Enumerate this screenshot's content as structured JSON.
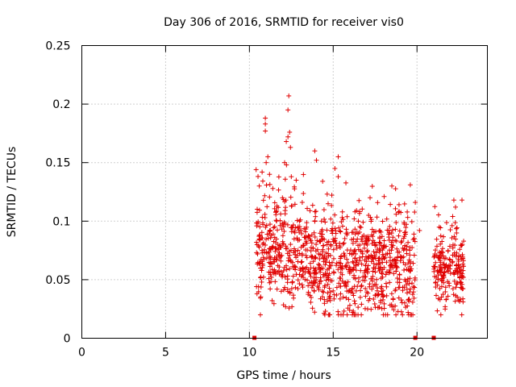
{
  "chart_data": {
    "type": "scatter",
    "title": "Day 306 of 2016, SRMTID for receiver vis0",
    "xlabel": "GPS time / hours",
    "ylabel": "SRMTID / TECUs",
    "xlim": [
      0,
      24.2
    ],
    "ylim": [
      0,
      0.25
    ],
    "x_ticks": [
      0,
      5,
      10,
      15,
      20
    ],
    "x_tick_labels": [
      "0",
      "5",
      "10",
      "15",
      "20"
    ],
    "y_ticks": [
      0,
      0.05,
      0.1,
      0.15,
      0.2,
      0.25
    ],
    "y_tick_labels": [
      "0",
      "0.05",
      "0.1",
      "0.15",
      "0.2",
      "0.25"
    ],
    "grid": true,
    "marker": "+",
    "series": [
      {
        "name": "SRMTID",
        "color": "#e00000",
        "segments": [
          {
            "x_start": 10.4,
            "x_end": 19.9,
            "y_mean": 0.062,
            "y_spread": 0.022,
            "y_min": 0.02,
            "y_max": 0.21
          },
          {
            "x_start": 21.0,
            "x_end": 22.8,
            "y_mean": 0.06,
            "y_spread": 0.016,
            "y_min": 0.02,
            "y_max": 0.118
          }
        ],
        "peaks": [
          {
            "x": 12.35,
            "y": 0.207
          },
          {
            "x": 12.3,
            "y": 0.195
          },
          {
            "x": 10.95,
            "y": 0.188
          },
          {
            "x": 10.95,
            "y": 0.183
          },
          {
            "x": 10.95,
            "y": 0.177
          },
          {
            "x": 12.4,
            "y": 0.176
          },
          {
            "x": 12.3,
            "y": 0.172
          },
          {
            "x": 12.2,
            "y": 0.168
          },
          {
            "x": 12.45,
            "y": 0.163
          },
          {
            "x": 13.9,
            "y": 0.16
          },
          {
            "x": 15.3,
            "y": 0.155
          },
          {
            "x": 11.1,
            "y": 0.155
          },
          {
            "x": 11.0,
            "y": 0.15
          },
          {
            "x": 14.0,
            "y": 0.152
          },
          {
            "x": 12.1,
            "y": 0.15
          },
          {
            "x": 15.1,
            "y": 0.145
          },
          {
            "x": 10.4,
            "y": 0.144
          },
          {
            "x": 15.3,
            "y": 0.138
          },
          {
            "x": 11.2,
            "y": 0.14
          },
          {
            "x": 12.5,
            "y": 0.138
          },
          {
            "x": 19.6,
            "y": 0.131
          },
          {
            "x": 18.5,
            "y": 0.13
          },
          {
            "x": 17.2,
            "y": 0.12
          },
          {
            "x": 22.2,
            "y": 0.118
          },
          {
            "x": 22.3,
            "y": 0.112
          },
          {
            "x": 20.15,
            "y": 0.092
          },
          {
            "x": 16.5,
            "y": 0.1
          },
          {
            "x": 16.3,
            "y": 0.108
          }
        ],
        "data_gaps": [
          10.3,
          19.9,
          21.0
        ]
      }
    ]
  }
}
